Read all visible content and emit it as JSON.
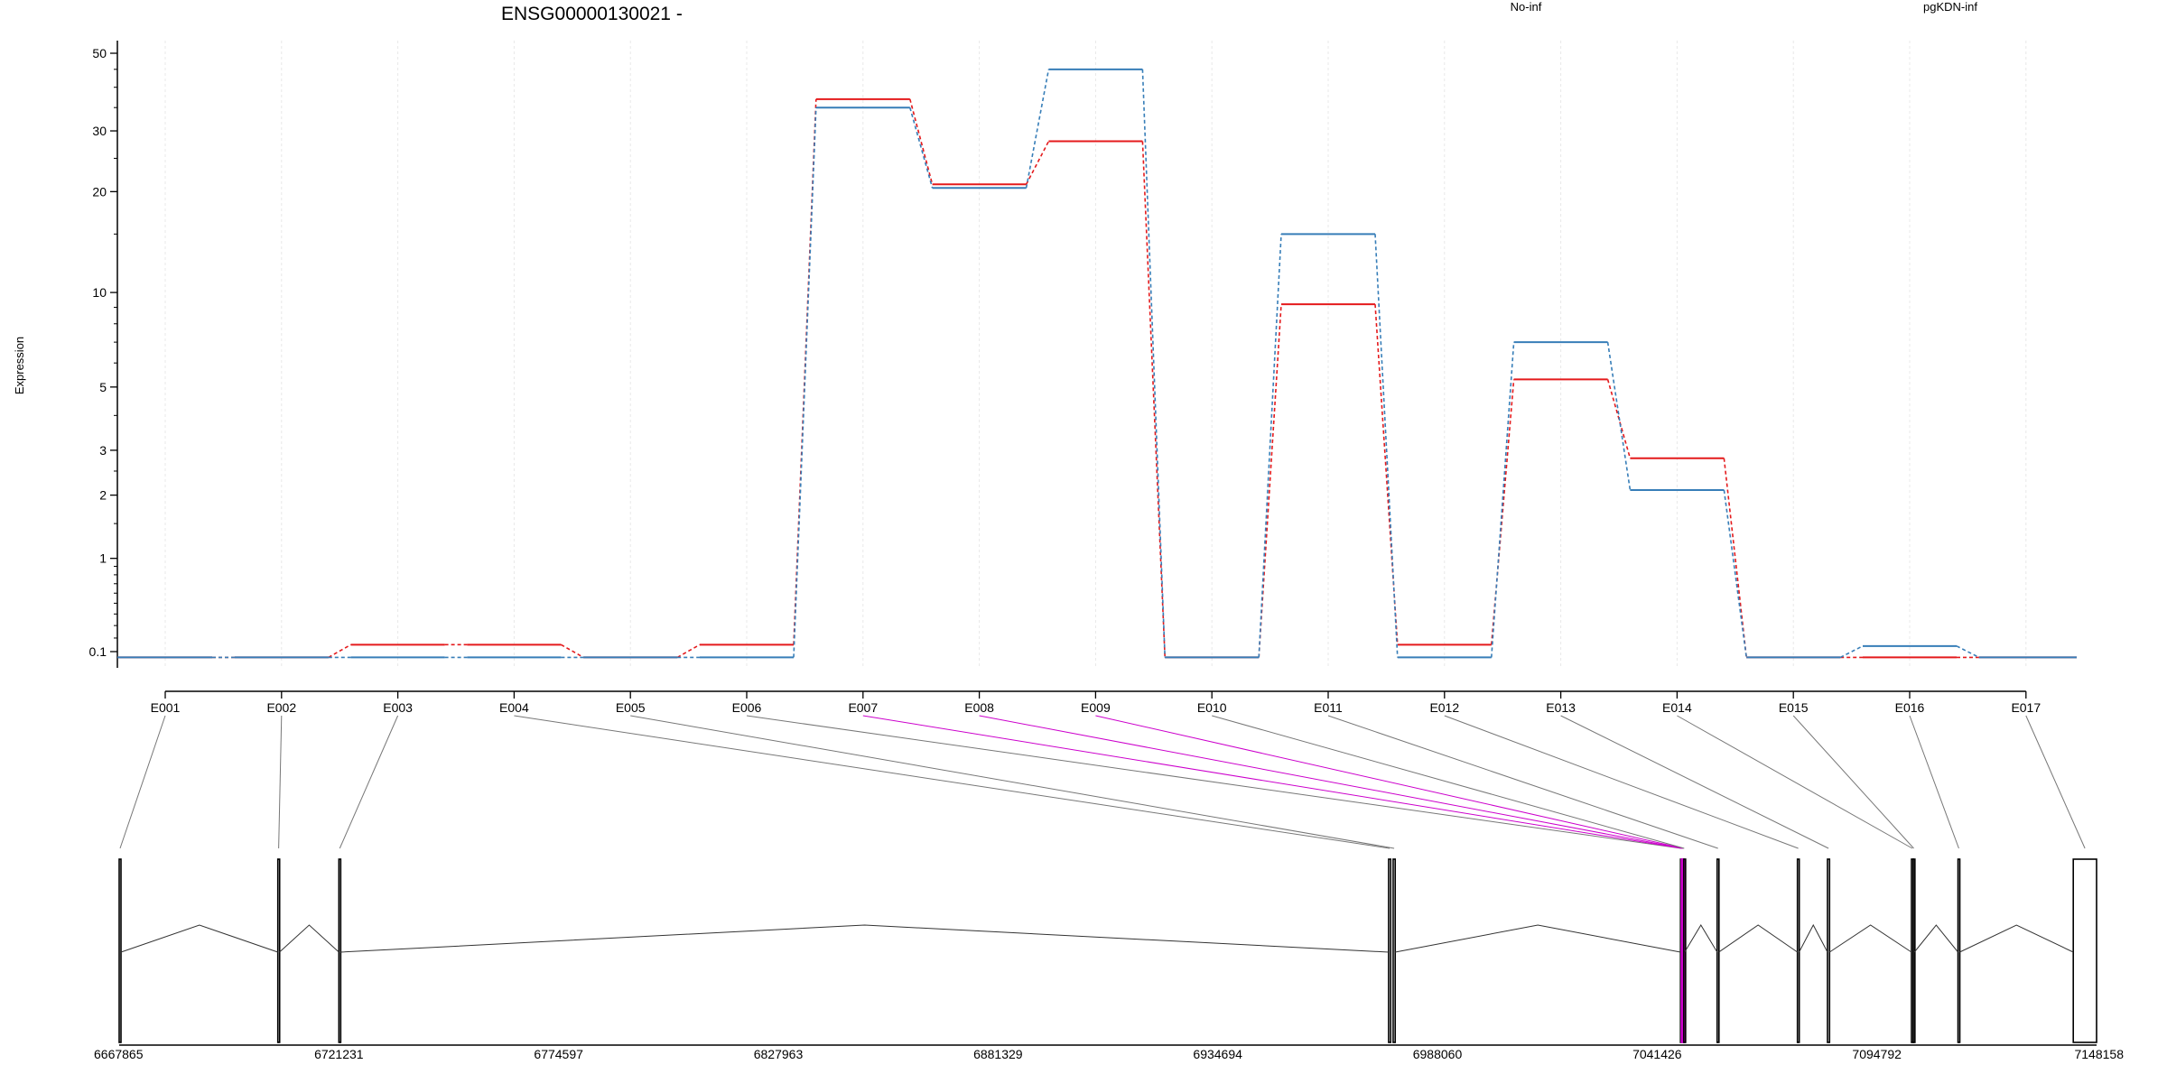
{
  "chart_data": {
    "type": "line",
    "title": "ENSG00000130021 -",
    "ylabel": "Expression",
    "xlabel": "",
    "yscale": "log1p",
    "y_tick_labels": [
      "0.1",
      "1",
      "2",
      "3",
      "5",
      "10",
      "20",
      "30",
      "50"
    ],
    "y_tick_values": [
      0.1,
      1,
      2,
      3,
      5,
      10,
      20,
      30,
      50
    ],
    "categories": [
      "E001",
      "E002",
      "E003",
      "E004",
      "E005",
      "E006",
      "E007",
      "E008",
      "E009",
      "E010",
      "E011",
      "E012",
      "E013",
      "E014",
      "E015",
      "E016",
      "E017"
    ],
    "grid": true,
    "legend_placement": "top",
    "series": [
      {
        "name": "No-inf",
        "color": "#e41a1c",
        "values": [
          0.06,
          0.06,
          0.15,
          0.15,
          0.06,
          0.15,
          37,
          21,
          28,
          0.06,
          9.2,
          0.15,
          5.3,
          2.8,
          0.06,
          0.06,
          0.06
        ]
      },
      {
        "name": "pgKDN-inf",
        "color": "#377eb8",
        "values": [
          0.06,
          0.06,
          0.06,
          0.06,
          0.06,
          0.06,
          35,
          20.5,
          45,
          0.06,
          15,
          0.06,
          7,
          2.1,
          0.06,
          0.14,
          0.06
        ]
      }
    ],
    "genome_axis": {
      "tick_labels": [
        "6667865",
        "6721231",
        "6774597",
        "6827963",
        "6881329",
        "6934694",
        "6988060",
        "7041426",
        "7094792",
        "7148158"
      ],
      "range": [
        6667865,
        7148158
      ]
    },
    "exons": [
      {
        "id": "E001",
        "start": 6667865,
        "end": 6668300
      },
      {
        "id": "E002",
        "start": 6706400,
        "end": 6706800
      },
      {
        "id": "E003",
        "start": 6721231,
        "end": 6721650
      },
      {
        "id": "E004",
        "start": 6976200,
        "end": 6976700
      },
      {
        "id": "E005",
        "start": 6977300,
        "end": 6977800
      },
      {
        "id": "E006",
        "start": 7047100,
        "end": 7047300
      },
      {
        "id": "E007",
        "start": 7047300,
        "end": 7047500
      },
      {
        "id": "E008",
        "start": 7047500,
        "end": 7047700
      },
      {
        "id": "E009",
        "start": 7047700,
        "end": 7047900
      },
      {
        "id": "E010",
        "start": 7047900,
        "end": 7048100
      },
      {
        "id": "E011",
        "start": 7056000,
        "end": 7056400
      },
      {
        "id": "E012",
        "start": 7075500,
        "end": 7075900
      },
      {
        "id": "E013",
        "start": 7082800,
        "end": 7083300
      },
      {
        "id": "E014",
        "start": 7103200,
        "end": 7103600
      },
      {
        "id": "E015",
        "start": 7103600,
        "end": 7103900
      },
      {
        "id": "E016",
        "start": 7114500,
        "end": 7114900
      },
      {
        "id": "E017",
        "start": 7142500,
        "end": 7148158
      }
    ],
    "highlighted_exons": [
      "E007",
      "E008",
      "E009"
    ],
    "highlight_color": "#cc00cc",
    "gene_color": "#000000"
  }
}
